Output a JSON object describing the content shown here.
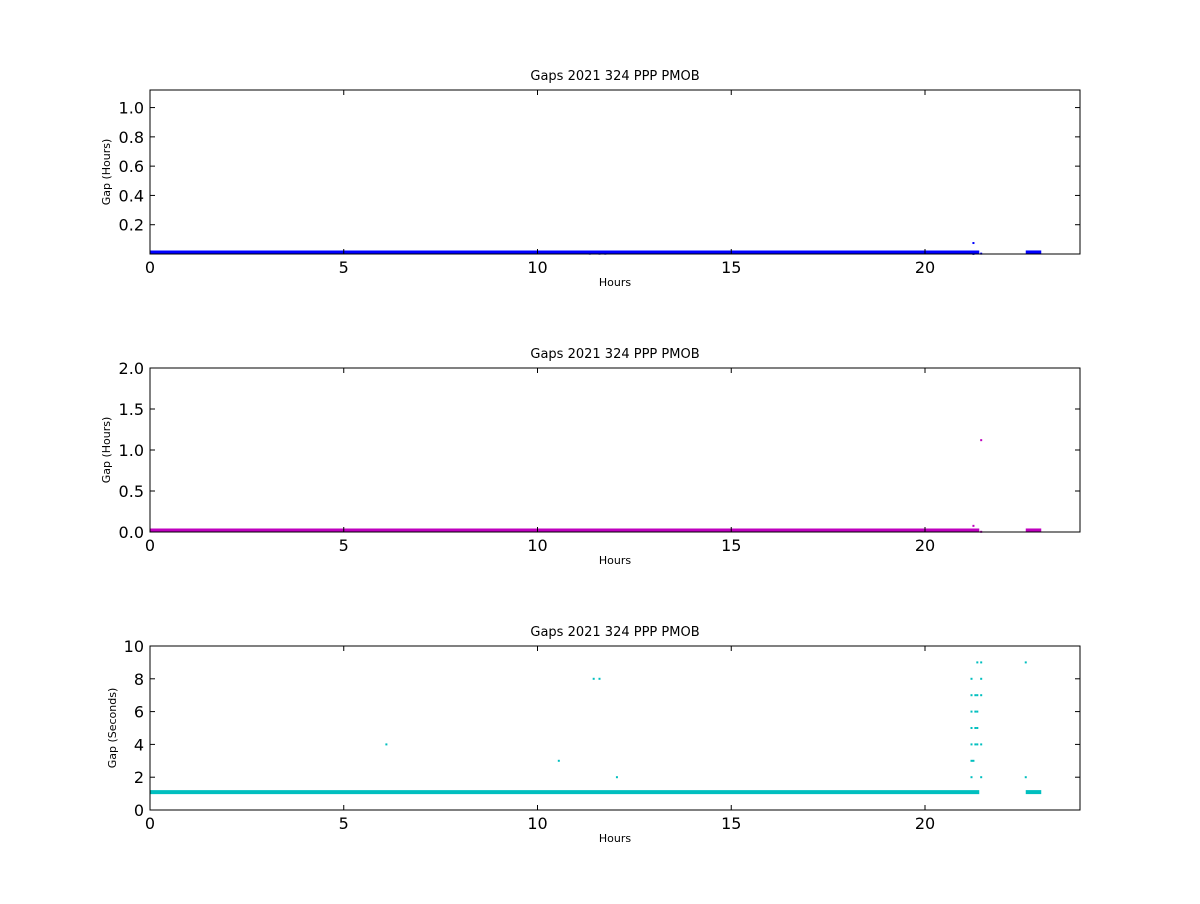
{
  "chart_data": [
    {
      "type": "scatter",
      "title": "Gaps 2021 324 PPP  PMOB",
      "xlabel": "Hours",
      "ylabel": "Gap (Hours)",
      "xlim": [
        0,
        24
      ],
      "ylim": [
        0,
        1.12
      ],
      "xticks": [
        0,
        5,
        10,
        15,
        20
      ],
      "yticks": [
        0.2,
        0.4,
        0.6,
        0.8,
        1.0
      ],
      "ytick_labels": [
        "0.2",
        "0.4",
        "0.6",
        "0.8",
        "1.0"
      ],
      "grid": false,
      "color": "#0000ff",
      "series": [
        {
          "baseline_ranges": [
            [
              0,
              21.4
            ],
            [
              22.6,
              23.0
            ]
          ],
          "baseline_value": 0.0003,
          "points": [
            {
              "x": 11.35,
              "y": 0.0022
            },
            {
              "x": 11.6,
              "y": 0.0022
            },
            {
              "x": 11.75,
              "y": 0.0022
            },
            {
              "x": 21.25,
              "y": 0.0006
            },
            {
              "x": 21.25,
              "y": 0.075
            },
            {
              "x": 21.45,
              "y": 0.0025
            }
          ]
        }
      ]
    },
    {
      "type": "scatter",
      "title": "Gaps 2021 324 PPP  PMOB",
      "xlabel": "Hours",
      "ylabel": "Gap (Hours)",
      "xlim": [
        0,
        24
      ],
      "ylim": [
        0,
        2.0
      ],
      "xticks": [
        0,
        5,
        10,
        15,
        20
      ],
      "yticks": [
        0.0,
        0.5,
        1.0,
        1.5,
        2.0
      ],
      "ytick_labels": [
        "0.0",
        "0.5",
        "1.0",
        "1.5",
        "2.0"
      ],
      "grid": false,
      "color": "#bf00bf",
      "series": [
        {
          "baseline_ranges": [
            [
              0,
              21.4
            ],
            [
              22.6,
              23.0
            ]
          ],
          "baseline_value": 0.0003,
          "points": [
            {
              "x": 21.25,
              "y": 0.075
            },
            {
              "x": 21.45,
              "y": 1.12
            },
            {
              "x": 21.45,
              "y": 0.0025
            }
          ]
        }
      ]
    },
    {
      "type": "scatter",
      "title": "Gaps 2021 324 PPP  PMOB",
      "xlabel": "Hours",
      "ylabel": "Gap (Seconds)",
      "xlim": [
        0,
        24
      ],
      "ylim": [
        0,
        10
      ],
      "xticks": [
        0,
        5,
        10,
        15,
        20
      ],
      "yticks": [
        0,
        2,
        4,
        6,
        8,
        10
      ],
      "ytick_labels": [
        "0",
        "2",
        "4",
        "6",
        "8",
        "10"
      ],
      "grid": false,
      "color": "#00bfbf",
      "series": [
        {
          "baseline_ranges": [
            [
              0,
              21.4
            ],
            [
              22.6,
              23.0
            ]
          ],
          "baseline_value": 1,
          "points": [
            {
              "x": 6.1,
              "y": 4
            },
            {
              "x": 10.55,
              "y": 3
            },
            {
              "x": 11.45,
              "y": 8
            },
            {
              "x": 11.6,
              "y": 8
            },
            {
              "x": 12.05,
              "y": 2
            },
            {
              "x": 21.2,
              "y": 2
            },
            {
              "x": 21.2,
              "y": 3
            },
            {
              "x": 21.2,
              "y": 4
            },
            {
              "x": 21.2,
              "y": 5
            },
            {
              "x": 21.2,
              "y": 6
            },
            {
              "x": 21.2,
              "y": 7
            },
            {
              "x": 21.2,
              "y": 8
            },
            {
              "x": 21.25,
              "y": 3
            },
            {
              "x": 21.3,
              "y": 4
            },
            {
              "x": 21.3,
              "y": 5
            },
            {
              "x": 21.3,
              "y": 6
            },
            {
              "x": 21.3,
              "y": 7
            },
            {
              "x": 21.35,
              "y": 4
            },
            {
              "x": 21.35,
              "y": 5
            },
            {
              "x": 21.35,
              "y": 6
            },
            {
              "x": 21.35,
              "y": 7
            },
            {
              "x": 21.35,
              "y": 9
            },
            {
              "x": 21.45,
              "y": 2
            },
            {
              "x": 21.45,
              "y": 4
            },
            {
              "x": 21.45,
              "y": 7
            },
            {
              "x": 21.45,
              "y": 9
            },
            {
              "x": 21.45,
              "y": 8
            },
            {
              "x": 22.6,
              "y": 9
            },
            {
              "x": 22.6,
              "y": 2
            }
          ]
        }
      ]
    }
  ]
}
